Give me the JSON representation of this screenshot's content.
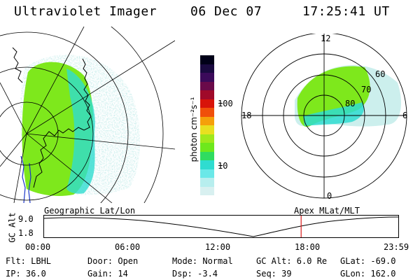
{
  "header": {
    "instrument": "Ultraviolet Imager",
    "date": "06 Dec 07",
    "time": "17:25:41 UT"
  },
  "colors": {
    "aurora_primary": "#7ee81c",
    "aurora_secondary": "#2fdcd0",
    "aurora_faint": "#b7e8e6",
    "marker_line": "#d81c1c",
    "coast_blue": "#1a35c8"
  },
  "geo_map": {
    "projection_label": "Geographic Lat/Lon"
  },
  "polar_plot": {
    "projection_label": "Apex MLat/MLT",
    "mlt_labels": {
      "top": "12",
      "right": "6",
      "bottom": "0",
      "left": "18"
    },
    "lat_labels": [
      "60",
      "70",
      "80"
    ]
  },
  "colorbar": {
    "unit_label": "photon cm⁻²s⁻¹",
    "ticks": [
      "100",
      "10"
    ],
    "colors": [
      "#000018",
      "#1a0a40",
      "#3b0a5a",
      "#6a0a4a",
      "#a00a2a",
      "#d8140a",
      "#f0500a",
      "#f5a00a",
      "#e8e020",
      "#a0e81c",
      "#6ee81c",
      "#2fdc60",
      "#2fdcd0",
      "#6ae8e8",
      "#b7eeee",
      "#d8f0f0"
    ]
  },
  "altitude_strip": {
    "axis_label": "GC Alt",
    "y_ticks": [
      "9.0",
      "1.8"
    ],
    "x_ticks": [
      "00:00",
      "06:00",
      "12:00",
      "18:00",
      "23:59"
    ],
    "current_marker_time": "17:25"
  },
  "status": {
    "filter": "Flt: LBHL",
    "ip": "IP: 36.0",
    "door": "Door: Open",
    "gain": "Gain: 14",
    "mode": "Mode: Normal",
    "dsp": "Dsp:   -3.4",
    "gc_alt": "GC Alt: 6.0 Re",
    "seq": "Seq: 39",
    "glat": "GLat: -69.0",
    "glon": "GLon: 162.0"
  }
}
